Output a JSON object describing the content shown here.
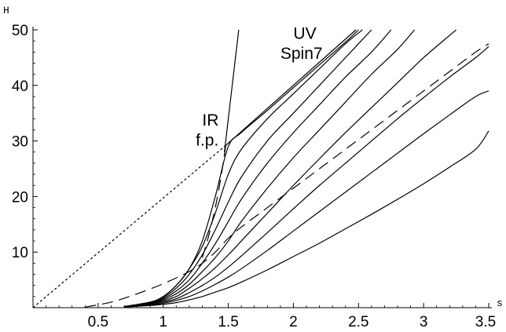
{
  "chart_data": {
    "type": "line",
    "xlabel": "s",
    "ylabel": "H",
    "xlim": [
      0,
      3.5
    ],
    "ylim": [
      0,
      50
    ],
    "x_ticks": [
      0.5,
      1,
      1.5,
      2,
      2.5,
      3,
      3.5
    ],
    "y_ticks": [
      10,
      20,
      30,
      40,
      50
    ],
    "x_tick_labels": [
      "0.5",
      "1",
      "1.5",
      "2",
      "2.5",
      "3",
      "3.5"
    ],
    "y_tick_labels": [
      "10",
      "20",
      "30",
      "40",
      "50"
    ],
    "grid": false,
    "legend": "none",
    "annotations": [
      {
        "text": "UV",
        "x": 2.0,
        "y": 48.4
      },
      {
        "text": "Spin7",
        "x": 1.9,
        "y": 44.8
      },
      {
        "text": "IR",
        "x": 1.3,
        "y": 32.8
      },
      {
        "text": "f.p.",
        "x": 1.25,
        "y": 29.2
      }
    ],
    "series": [
      {
        "style": "dotted",
        "points": [
          [
            0,
            0
          ],
          [
            1.48,
            29.2
          ]
        ]
      },
      {
        "style": "solid",
        "points": [
          [
            1.48,
            29.2
          ],
          [
            2.48,
            50
          ]
        ]
      },
      {
        "style": "solid",
        "points": [
          [
            1.47,
            28.0
          ],
          [
            1.49,
            32.0
          ],
          [
            1.51,
            36.0
          ],
          [
            1.53,
            40.0
          ],
          [
            1.555,
            45.0
          ],
          [
            1.58,
            50.0
          ]
        ]
      },
      {
        "style": "solid",
        "points": [
          [
            0.7,
            0.2
          ],
          [
            0.9,
            1.0
          ],
          [
            1.0,
            2.0
          ],
          [
            1.1,
            4.0
          ],
          [
            1.2,
            7.0
          ],
          [
            1.3,
            12.0
          ],
          [
            1.4,
            20.0
          ],
          [
            1.5,
            29.0
          ],
          [
            1.6,
            31.5
          ],
          [
            1.8,
            35.5
          ],
          [
            2.0,
            39.6
          ],
          [
            2.2,
            43.7
          ],
          [
            2.4,
            47.8
          ],
          [
            2.5,
            50.0
          ]
        ]
      },
      {
        "style": "solid",
        "points": [
          [
            0.7,
            0.2
          ],
          [
            0.9,
            1.0
          ],
          [
            1.0,
            2.0
          ],
          [
            1.1,
            4.0
          ],
          [
            1.2,
            7.0
          ],
          [
            1.3,
            11.0
          ],
          [
            1.4,
            17.0
          ],
          [
            1.5,
            24.0
          ],
          [
            1.6,
            28.5
          ],
          [
            1.8,
            34.0
          ],
          [
            2.0,
            38.5
          ],
          [
            2.2,
            43.0
          ],
          [
            2.4,
            47.5
          ],
          [
            2.53,
            50.0
          ]
        ]
      },
      {
        "style": "solid",
        "points": [
          [
            0.7,
            0.2
          ],
          [
            0.9,
            1.0
          ],
          [
            1.0,
            1.8
          ],
          [
            1.1,
            3.5
          ],
          [
            1.2,
            6.0
          ],
          [
            1.3,
            9.5
          ],
          [
            1.4,
            14.0
          ],
          [
            1.5,
            19.0
          ],
          [
            1.6,
            23.5
          ],
          [
            1.8,
            30.0
          ],
          [
            2.0,
            35.0
          ],
          [
            2.2,
            40.0
          ],
          [
            2.4,
            45.0
          ],
          [
            2.6,
            50.0
          ]
        ]
      },
      {
        "style": "solid",
        "points": [
          [
            0.7,
            0.2
          ],
          [
            0.9,
            0.9
          ],
          [
            1.0,
            1.6
          ],
          [
            1.1,
            3.0
          ],
          [
            1.2,
            5.0
          ],
          [
            1.3,
            8.0
          ],
          [
            1.4,
            11.5
          ],
          [
            1.5,
            15.5
          ],
          [
            1.6,
            19.5
          ],
          [
            1.8,
            26.0
          ],
          [
            2.0,
            31.5
          ],
          [
            2.2,
            36.5
          ],
          [
            2.4,
            41.5
          ],
          [
            2.6,
            46.0
          ],
          [
            2.75,
            50.0
          ]
        ]
      },
      {
        "style": "solid",
        "points": [
          [
            0.7,
            0.2
          ],
          [
            0.9,
            0.8
          ],
          [
            1.0,
            1.4
          ],
          [
            1.1,
            2.5
          ],
          [
            1.2,
            4.2
          ],
          [
            1.3,
            6.5
          ],
          [
            1.4,
            9.0
          ],
          [
            1.5,
            12.0
          ],
          [
            1.6,
            15.5
          ],
          [
            1.8,
            21.5
          ],
          [
            2.0,
            27.0
          ],
          [
            2.2,
            32.0
          ],
          [
            2.4,
            37.0
          ],
          [
            2.6,
            42.0
          ],
          [
            2.8,
            46.5
          ],
          [
            2.93,
            50.0
          ]
        ]
      },
      {
        "style": "solid",
        "points": [
          [
            0.7,
            0.2
          ],
          [
            0.9,
            0.7
          ],
          [
            1.0,
            1.2
          ],
          [
            1.1,
            2.0
          ],
          [
            1.2,
            3.5
          ],
          [
            1.3,
            5.2
          ],
          [
            1.4,
            7.2
          ],
          [
            1.5,
            9.5
          ],
          [
            1.6,
            12.0
          ],
          [
            1.8,
            17.0
          ],
          [
            2.0,
            22.0
          ],
          [
            2.2,
            26.8
          ],
          [
            2.4,
            31.5
          ],
          [
            2.6,
            36.0
          ],
          [
            2.8,
            40.5
          ],
          [
            3.0,
            45.0
          ],
          [
            3.2,
            49.0
          ],
          [
            3.25,
            50.0
          ]
        ]
      },
      {
        "style": "solid",
        "points": [
          [
            0.7,
            0.2
          ],
          [
            0.9,
            0.6
          ],
          [
            1.0,
            1.0
          ],
          [
            1.1,
            1.6
          ],
          [
            1.2,
            2.7
          ],
          [
            1.3,
            4.0
          ],
          [
            1.4,
            5.5
          ],
          [
            1.5,
            7.3
          ],
          [
            1.6,
            9.3
          ],
          [
            1.8,
            13.5
          ],
          [
            2.0,
            17.8
          ],
          [
            2.2,
            22.0
          ],
          [
            2.4,
            26.0
          ],
          [
            2.6,
            30.0
          ],
          [
            2.8,
            34.0
          ],
          [
            3.0,
            37.8
          ],
          [
            3.2,
            41.5
          ],
          [
            3.4,
            45.0
          ],
          [
            3.5,
            47.0
          ]
        ]
      },
      {
        "style": "solid",
        "points": [
          [
            0.7,
            0.2
          ],
          [
            0.9,
            0.5
          ],
          [
            1.0,
            0.8
          ],
          [
            1.1,
            1.3
          ],
          [
            1.2,
            2.0
          ],
          [
            1.3,
            3.0
          ],
          [
            1.4,
            4.2
          ],
          [
            1.5,
            5.5
          ],
          [
            1.6,
            7.0
          ],
          [
            1.8,
            10.3
          ],
          [
            2.0,
            13.8
          ],
          [
            2.2,
            17.3
          ],
          [
            2.4,
            20.8
          ],
          [
            2.6,
            24.3
          ],
          [
            2.8,
            27.8
          ],
          [
            3.0,
            31.3
          ],
          [
            3.2,
            34.7
          ],
          [
            3.4,
            38.0
          ],
          [
            3.5,
            39.0
          ]
        ]
      },
      {
        "style": "solid",
        "points": [
          [
            0.7,
            0.1
          ],
          [
            0.9,
            0.4
          ],
          [
            1.0,
            0.6
          ],
          [
            1.1,
            0.9
          ],
          [
            1.2,
            1.4
          ],
          [
            1.3,
            2.0
          ],
          [
            1.4,
            2.8
          ],
          [
            1.5,
            3.6
          ],
          [
            1.6,
            4.6
          ],
          [
            1.8,
            6.8
          ],
          [
            2.0,
            9.2
          ],
          [
            2.2,
            11.6
          ],
          [
            2.4,
            14.2
          ],
          [
            2.6,
            16.8
          ],
          [
            2.8,
            19.5
          ],
          [
            3.0,
            22.3
          ],
          [
            3.2,
            25.3
          ],
          [
            3.4,
            28.5
          ],
          [
            3.5,
            31.8
          ]
        ]
      },
      {
        "style": "dashed",
        "points": [
          [
            0.4,
            0.1
          ],
          [
            0.6,
            1.0
          ],
          [
            0.8,
            2.5
          ],
          [
            1.0,
            4.3
          ],
          [
            1.2,
            6.5
          ],
          [
            1.3,
            8.0
          ],
          [
            1.4,
            10.0
          ],
          [
            1.5,
            12.5
          ],
          [
            1.6,
            14.5
          ],
          [
            1.8,
            18.0
          ],
          [
            2.0,
            21.5
          ],
          [
            2.2,
            25.0
          ],
          [
            2.4,
            28.5
          ],
          [
            2.6,
            32.0
          ],
          [
            2.8,
            35.5
          ],
          [
            3.0,
            39.0
          ],
          [
            3.2,
            42.5
          ],
          [
            3.4,
            46.0
          ],
          [
            3.5,
            47.5
          ]
        ]
      },
      {
        "style": "dashed",
        "points": [
          [
            1.3,
            9.0
          ],
          [
            1.35,
            13.0
          ],
          [
            1.4,
            18.0
          ],
          [
            1.44,
            23.0
          ],
          [
            1.47,
            27.5
          ],
          [
            1.48,
            29.2
          ]
        ]
      }
    ]
  }
}
